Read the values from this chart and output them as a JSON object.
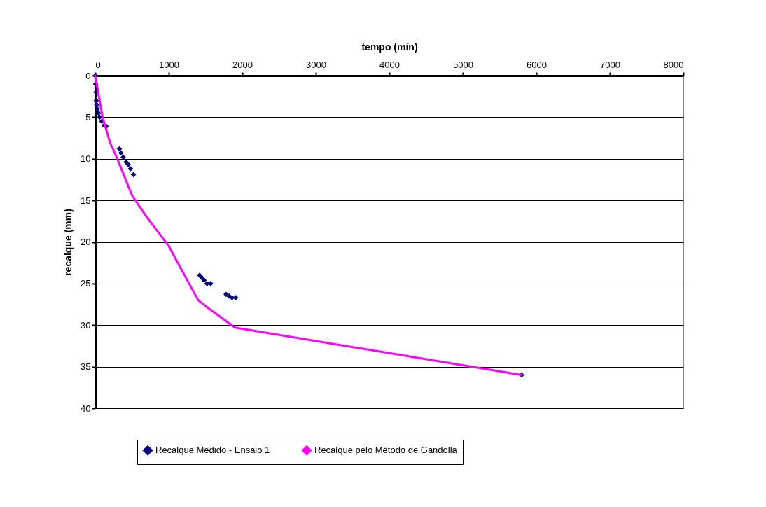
{
  "chart_data": {
    "type": "scatter",
    "xlabel": "tempo (min)",
    "ylabel": "recalque (mm)",
    "xlim": [
      0,
      8000
    ],
    "xticks": [
      0,
      1000,
      2000,
      3000,
      4000,
      5000,
      6000,
      7000,
      8000
    ],
    "ylim": [
      40,
      0
    ],
    "yticks": [
      0,
      5,
      10,
      15,
      20,
      25,
      30,
      35,
      40
    ],
    "grid": "y",
    "legend": "bottom",
    "series": [
      {
        "name": "Recalque Medido - Ensaio 1",
        "marker": "diamond",
        "color": "#000080",
        "x": [
          0,
          5,
          10,
          15,
          20,
          30,
          45,
          60,
          90,
          120,
          150,
          330,
          350,
          380,
          420,
          450,
          480,
          520,
          1420,
          1450,
          1480,
          1520,
          1570,
          1780,
          1820,
          1860,
          1910,
          5800
        ],
        "values": [
          0,
          1,
          2,
          3,
          3.5,
          4,
          4.5,
          5,
          5.5,
          6,
          6.1,
          8.8,
          9.3,
          9.8,
          10.4,
          10.7,
          11.2,
          11.9,
          24,
          24.3,
          24.6,
          25,
          25,
          26.3,
          26.5,
          26.7,
          26.7,
          36
        ]
      },
      {
        "name": "Recalque pelo Método de Gandolla",
        "type": "line",
        "marker": "none",
        "line_style": "solid",
        "color": "#ff00ff",
        "x": [
          0,
          100,
          200,
          300,
          500,
          700,
          1000,
          1400,
          1500,
          1900,
          5800
        ],
        "values": [
          0,
          5,
          8,
          10,
          14.4,
          17,
          20.5,
          27,
          27.7,
          30.3,
          36
        ]
      }
    ]
  }
}
